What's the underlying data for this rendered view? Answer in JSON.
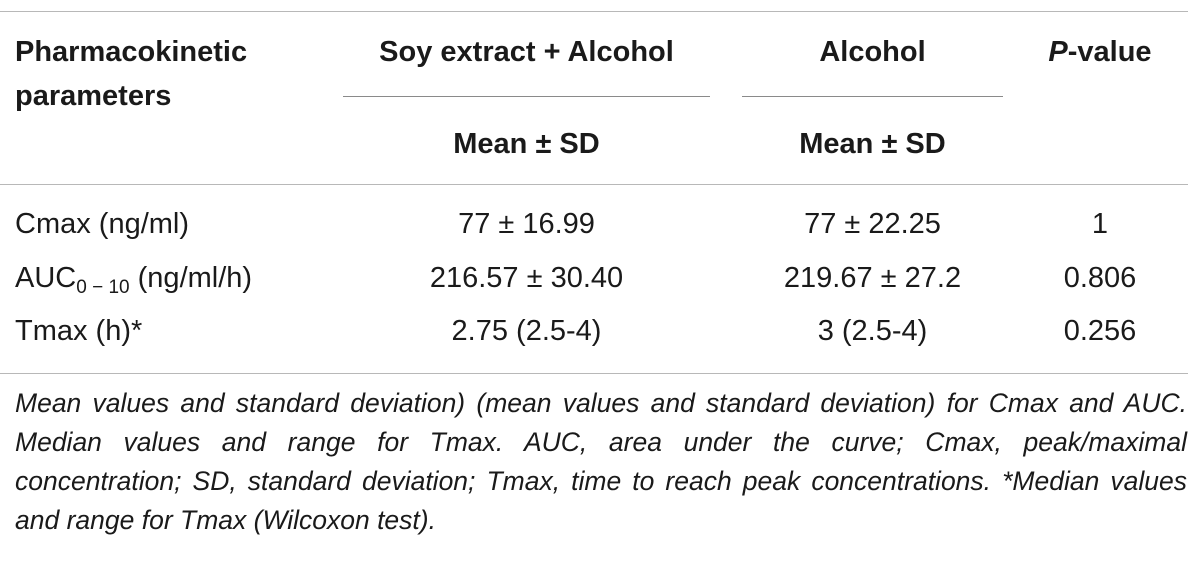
{
  "table": {
    "headers": {
      "parameter": "Pharmacokinetic parameters",
      "group1": "Soy extract + Alcohol",
      "group2": "Alcohol",
      "pvalue_italic": "P",
      "pvalue_rest": "-value",
      "group1_sub": "Mean ± SD",
      "group2_sub": "Mean ± SD"
    },
    "rows": [
      {
        "name_main": "Cmax (ng/ml)",
        "name_sub": "",
        "name_tail": "",
        "group1": "77 ± 16.99",
        "group2": "77 ± 22.25",
        "pvalue": "1"
      },
      {
        "name_main": "AUC",
        "name_sub": "0 − 10",
        "name_tail": " (ng/ml/h)",
        "group1": "216.57 ± 30.40",
        "group2": "219.67 ± 27.2",
        "pvalue": "0.806"
      },
      {
        "name_main": "Tmax (h)*",
        "name_sub": "",
        "name_tail": "",
        "group1": "2.75 (2.5-4)",
        "group2": "3 (2.5-4)",
        "pvalue": "0.256"
      }
    ],
    "footnote": "Mean values and standard deviation) (mean values and standard deviation) for Cmax and AUC. Median values and range for Tmax. AUC, area under the curve; Cmax, peak/maximal concentration; SD, standard deviation; Tmax, time to reach peak concentrations. *Median values and range for Tmax (Wilcoxon test)."
  }
}
